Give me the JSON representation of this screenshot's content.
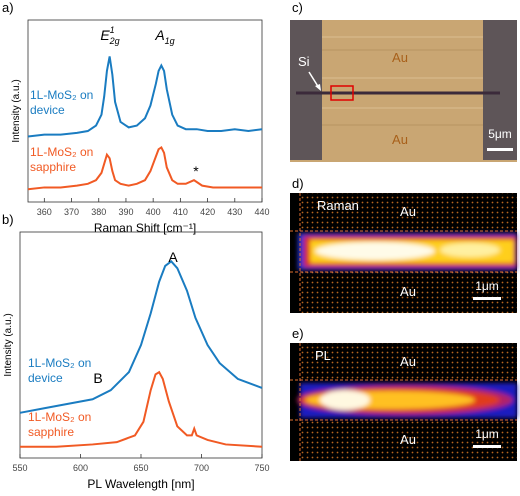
{
  "chart_data": [
    {
      "type": "line",
      "panel_label": "a)",
      "xlabel": "Raman Shift [cm⁻¹]",
      "ylabel": "Intensity (a.u.)",
      "xlim": [
        354,
        440
      ],
      "xticks": [
        360,
        370,
        380,
        390,
        400,
        410,
        420,
        430,
        440
      ],
      "ylim": [
        0,
        1
      ],
      "series": [
        {
          "name": "1L-MoS₂ on device",
          "color": "#1a7cc1",
          "x": [
            354,
            360,
            366,
            372,
            376,
            379,
            381,
            382,
            383,
            384,
            385,
            386,
            388,
            391,
            394,
            397,
            399,
            401,
            402,
            403,
            404,
            405,
            407,
            409,
            412,
            416,
            420,
            425,
            430,
            435,
            440
          ],
          "values": [
            0.36,
            0.37,
            0.37,
            0.38,
            0.39,
            0.42,
            0.48,
            0.58,
            0.72,
            0.8,
            0.7,
            0.55,
            0.44,
            0.41,
            0.42,
            0.46,
            0.53,
            0.65,
            0.72,
            0.75,
            0.72,
            0.62,
            0.48,
            0.42,
            0.4,
            0.4,
            0.39,
            0.39,
            0.4,
            0.39,
            0.4
          ]
        },
        {
          "name": "1L-MoS₂ on sapphire",
          "color": "#f15a24",
          "x": [
            354,
            360,
            366,
            372,
            376,
            379,
            381,
            382,
            383,
            384,
            385,
            386,
            388,
            391,
            394,
            397,
            399,
            401,
            402,
            403,
            404,
            405,
            407,
            409,
            412,
            415,
            418,
            422,
            428,
            434,
            440
          ],
          "values": [
            0.07,
            0.08,
            0.08,
            0.09,
            0.1,
            0.12,
            0.16,
            0.21,
            0.26,
            0.24,
            0.17,
            0.12,
            0.1,
            0.09,
            0.1,
            0.12,
            0.17,
            0.25,
            0.29,
            0.3,
            0.27,
            0.19,
            0.12,
            0.1,
            0.1,
            0.12,
            0.09,
            0.08,
            0.08,
            0.08,
            0.08
          ]
        }
      ],
      "annotations": [
        {
          "base": "E",
          "sup": "1",
          "sub": "2g"
        },
        {
          "base": "A",
          "sub": "1g"
        },
        {
          "base": "*"
        }
      ]
    },
    {
      "type": "line",
      "panel_label": "b)",
      "xlabel": "PL Wavelength [nm]",
      "ylabel": "Intensity (a.u.)",
      "xlim": [
        550,
        750
      ],
      "xticks": [
        550,
        600,
        650,
        700,
        750
      ],
      "ylim": [
        0,
        1
      ],
      "series": [
        {
          "name": "1L-MoS₂ on device",
          "color": "#1a7cc1",
          "x": [
            550,
            570,
            590,
            610,
            625,
            640,
            650,
            658,
            665,
            670,
            675,
            680,
            688,
            695,
            705,
            715,
            730,
            750
          ],
          "values": [
            0.2,
            0.22,
            0.24,
            0.26,
            0.3,
            0.38,
            0.5,
            0.64,
            0.78,
            0.85,
            0.87,
            0.84,
            0.74,
            0.62,
            0.5,
            0.42,
            0.35,
            0.31
          ]
        },
        {
          "name": "1L-MoS₂ on sapphire",
          "color": "#f15a24",
          "x": [
            550,
            580,
            610,
            630,
            645,
            652,
            658,
            662,
            665,
            668,
            673,
            680,
            688,
            692,
            694,
            696,
            705,
            720,
            750
          ],
          "values": [
            0.05,
            0.05,
            0.06,
            0.07,
            0.1,
            0.16,
            0.3,
            0.37,
            0.38,
            0.35,
            0.25,
            0.14,
            0.1,
            0.1,
            0.13,
            0.1,
            0.08,
            0.06,
            0.05
          ]
        }
      ],
      "annotations": [
        {
          "base": "A"
        },
        {
          "base": "B"
        }
      ]
    }
  ],
  "images": [
    {
      "panel_label": "c)",
      "labels": [
        "Si",
        "Au",
        "Au"
      ],
      "scale_bar": "5μm"
    },
    {
      "panel_label": "d)",
      "title": "Raman",
      "labels": [
        "Au",
        "Au"
      ],
      "scale_bar": "1μm"
    },
    {
      "panel_label": "e)",
      "title": "PL",
      "labels": [
        "Au",
        "Au"
      ],
      "scale_bar": "1μm"
    }
  ]
}
